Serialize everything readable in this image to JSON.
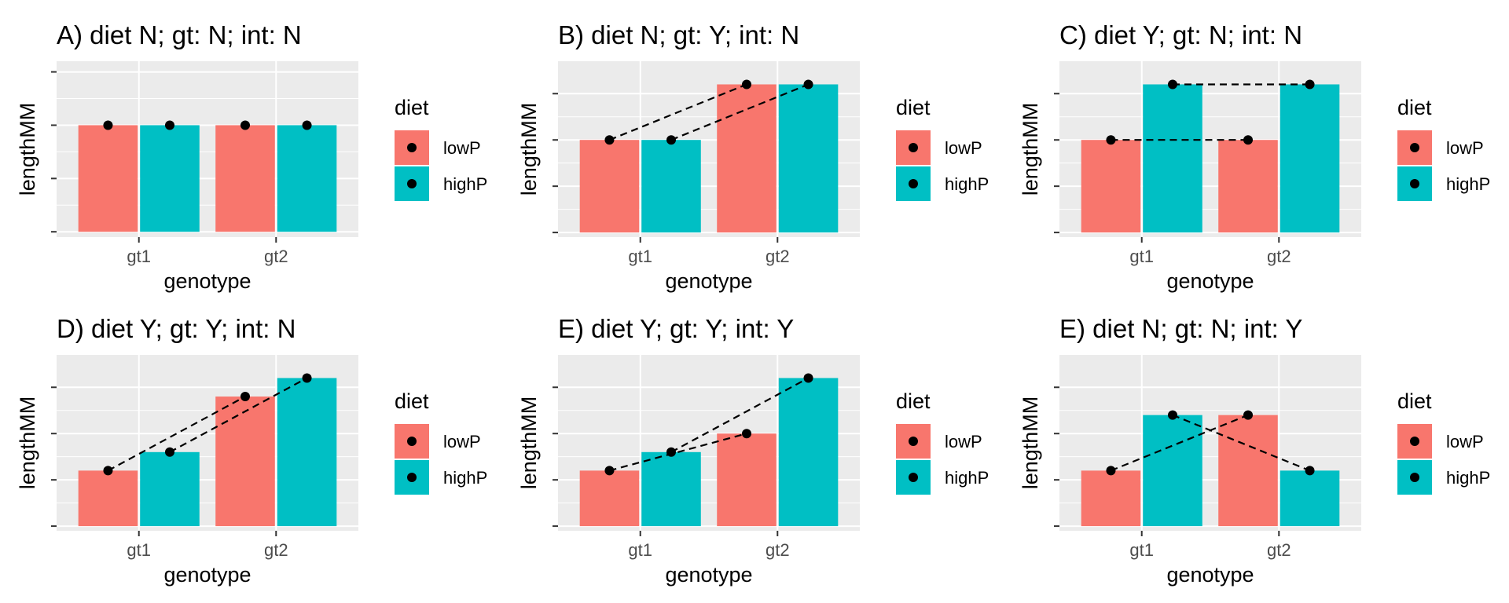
{
  "colors": {
    "lowP": "#F8766D",
    "highP": "#00BFC4",
    "panel_background": "#EBEBEB",
    "grid": "#FFFFFF",
    "point": "#000000",
    "line": "#000000"
  },
  "chart_data": [
    {
      "type": "bar",
      "title": "A) diet N; gt: N; int: N",
      "xlabel": "genotype",
      "ylabel": "lengthMM",
      "categories": [
        "gt1",
        "gt2"
      ],
      "series": [
        {
          "name": "lowP",
          "values": [
            2,
            2
          ]
        },
        {
          "name": "highP",
          "values": [
            2,
            2
          ]
        }
      ],
      "connect": "none",
      "ylim": [
        -0.1,
        3.2
      ],
      "yticks": [
        0,
        1,
        2,
        3
      ],
      "legend": {
        "title": "diet",
        "entries": [
          "lowP",
          "highP"
        ],
        "position": "right"
      }
    },
    {
      "type": "bar",
      "title": "B) diet N; gt: Y; int: N",
      "xlabel": "genotype",
      "ylabel": "lengthMM",
      "categories": [
        "gt1",
        "gt2"
      ],
      "series": [
        {
          "name": "lowP",
          "values": [
            2,
            3.2
          ]
        },
        {
          "name": "highP",
          "values": [
            2,
            3.2
          ]
        }
      ],
      "connect": "within-diet",
      "ylim": [
        -0.1,
        3.7
      ],
      "yticks": [
        0,
        1,
        2,
        3
      ],
      "legend": {
        "title": "diet",
        "entries": [
          "lowP",
          "highP"
        ],
        "position": "right"
      }
    },
    {
      "type": "bar",
      "title": "C) diet Y; gt: N; int: N",
      "xlabel": "genotype",
      "ylabel": "lengthMM",
      "categories": [
        "gt1",
        "gt2"
      ],
      "series": [
        {
          "name": "lowP",
          "values": [
            2,
            2
          ]
        },
        {
          "name": "highP",
          "values": [
            3.2,
            3.2
          ]
        }
      ],
      "connect": "within-diet",
      "ylim": [
        -0.1,
        3.7
      ],
      "yticks": [
        0,
        1,
        2,
        3
      ],
      "legend": {
        "title": "diet",
        "entries": [
          "lowP",
          "highP"
        ],
        "position": "right"
      }
    },
    {
      "type": "bar",
      "title": "D) diet Y; gt: Y; int: N",
      "xlabel": "genotype",
      "ylabel": "lengthMM",
      "categories": [
        "gt1",
        "gt2"
      ],
      "series": [
        {
          "name": "lowP",
          "values": [
            1.2,
            2.8
          ]
        },
        {
          "name": "highP",
          "values": [
            1.6,
            3.2
          ]
        }
      ],
      "connect": "within-diet",
      "ylim": [
        -0.1,
        3.7
      ],
      "yticks": [
        0,
        1,
        2,
        3
      ],
      "legend": {
        "title": "diet",
        "entries": [
          "lowP",
          "highP"
        ],
        "position": "right"
      }
    },
    {
      "type": "bar",
      "title": "E) diet Y; gt: Y; int: Y",
      "xlabel": "genotype",
      "ylabel": "lengthMM",
      "categories": [
        "gt1",
        "gt2"
      ],
      "series": [
        {
          "name": "lowP",
          "values": [
            1.2,
            2
          ]
        },
        {
          "name": "highP",
          "values": [
            1.6,
            3.2
          ]
        }
      ],
      "connect": "within-diet",
      "ylim": [
        -0.1,
        3.7
      ],
      "yticks": [
        0,
        1,
        2,
        3
      ],
      "legend": {
        "title": "diet",
        "entries": [
          "lowP",
          "highP"
        ],
        "position": "right"
      }
    },
    {
      "type": "bar",
      "title": "E) diet N; gt: N; int: Y",
      "xlabel": "genotype",
      "ylabel": "lengthMM",
      "categories": [
        "gt1",
        "gt2"
      ],
      "series": [
        {
          "name": "lowP",
          "values": [
            1.2,
            2.4
          ]
        },
        {
          "name": "highP",
          "values": [
            2.4,
            1.2
          ]
        }
      ],
      "connect": "within-diet",
      "ylim": [
        -0.1,
        3.7
      ],
      "yticks": [
        0,
        1,
        2,
        3
      ],
      "legend": {
        "title": "diet",
        "entries": [
          "lowP",
          "highP"
        ],
        "position": "right"
      }
    }
  ]
}
